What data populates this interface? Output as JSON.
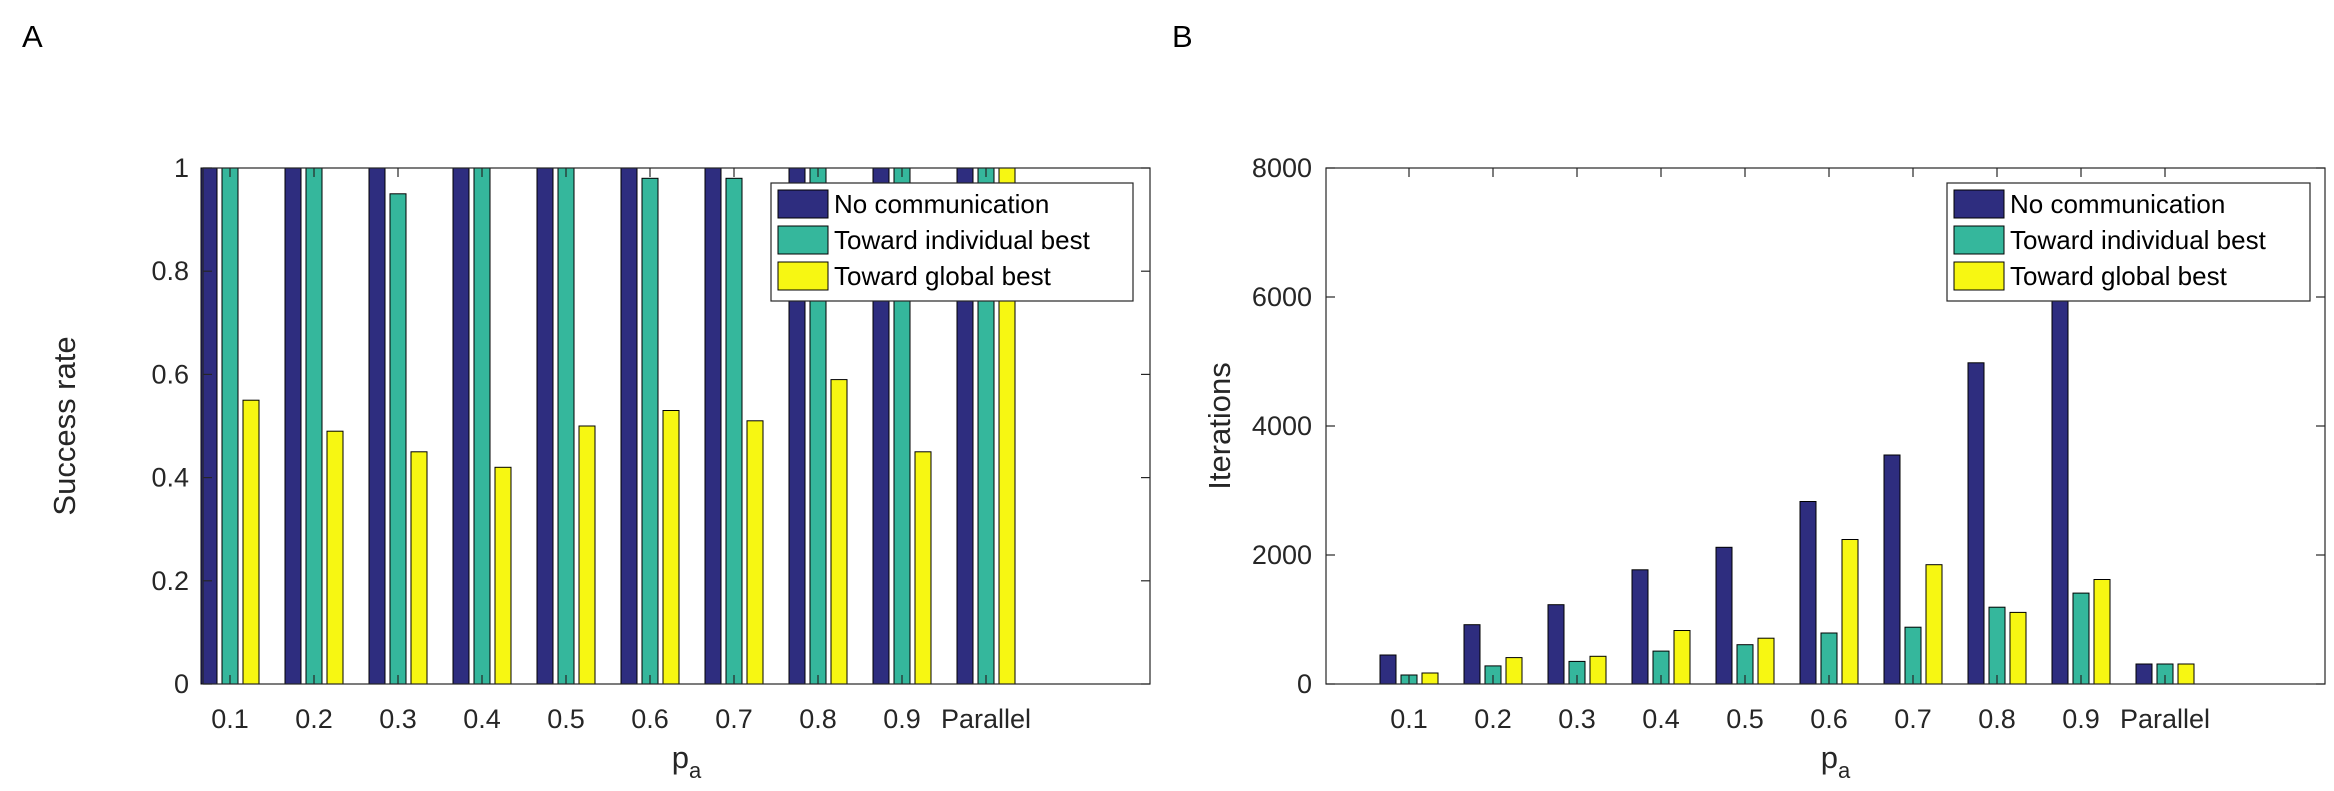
{
  "colors": {
    "no_communication": "#2e2d7f",
    "toward_individual_best": "#35b79c",
    "toward_global_best": "#f7f712",
    "axis": "#262626"
  },
  "chart_data": [
    {
      "type": "bar",
      "panel_label": "A",
      "title": "",
      "xlabel": "p",
      "xlabel_sub": "a",
      "ylabel": "Success rate",
      "categories": [
        "0.1",
        "0.2",
        "0.3",
        "0.4",
        "0.5",
        "0.6",
        "0.7",
        "0.8",
        "0.9",
        "Parallel"
      ],
      "ylim": [
        0,
        1
      ],
      "yticks": [
        0,
        0.2,
        0.4,
        0.6,
        0.8,
        1
      ],
      "ytick_labels": [
        "0",
        "0.2",
        "0.4",
        "0.6",
        "0.8",
        "1"
      ],
      "legend_position": "top-right",
      "series": [
        {
          "name": "No communication",
          "values": [
            1,
            1,
            1,
            1,
            1,
            1,
            1,
            1,
            1,
            1
          ]
        },
        {
          "name": "Toward individual best",
          "values": [
            1,
            1,
            0.95,
            1,
            1,
            0.98,
            0.98,
            1,
            1,
            1
          ]
        },
        {
          "name": "Toward global best",
          "values": [
            0.55,
            0.49,
            0.45,
            0.42,
            0.5,
            0.53,
            0.51,
            0.59,
            0.45,
            1
          ]
        }
      ]
    },
    {
      "type": "bar",
      "panel_label": "B",
      "title": "",
      "xlabel": "p",
      "xlabel_sub": "a",
      "ylabel": "Iterations",
      "categories": [
        "0.1",
        "0.2",
        "0.3",
        "0.4",
        "0.5",
        "0.6",
        "0.7",
        "0.8",
        "0.9",
        "Parallel"
      ],
      "ylim": [
        0,
        8000
      ],
      "yticks": [
        0,
        2000,
        4000,
        6000,
        8000
      ],
      "ytick_labels": [
        "0",
        "2000",
        "4000",
        "6000",
        "8000"
      ],
      "legend_position": "top-right",
      "series": [
        {
          "name": "No communication",
          "values": [
            450,
            920,
            1230,
            1770,
            2120,
            2830,
            3550,
            4980,
            6100,
            310
          ]
        },
        {
          "name": "Toward individual best",
          "values": [
            140,
            280,
            350,
            510,
            610,
            790,
            880,
            1190,
            1410,
            310
          ]
        },
        {
          "name": "Toward global best",
          "values": [
            170,
            410,
            430,
            830,
            710,
            2240,
            1850,
            1110,
            1620,
            310
          ]
        }
      ]
    }
  ]
}
